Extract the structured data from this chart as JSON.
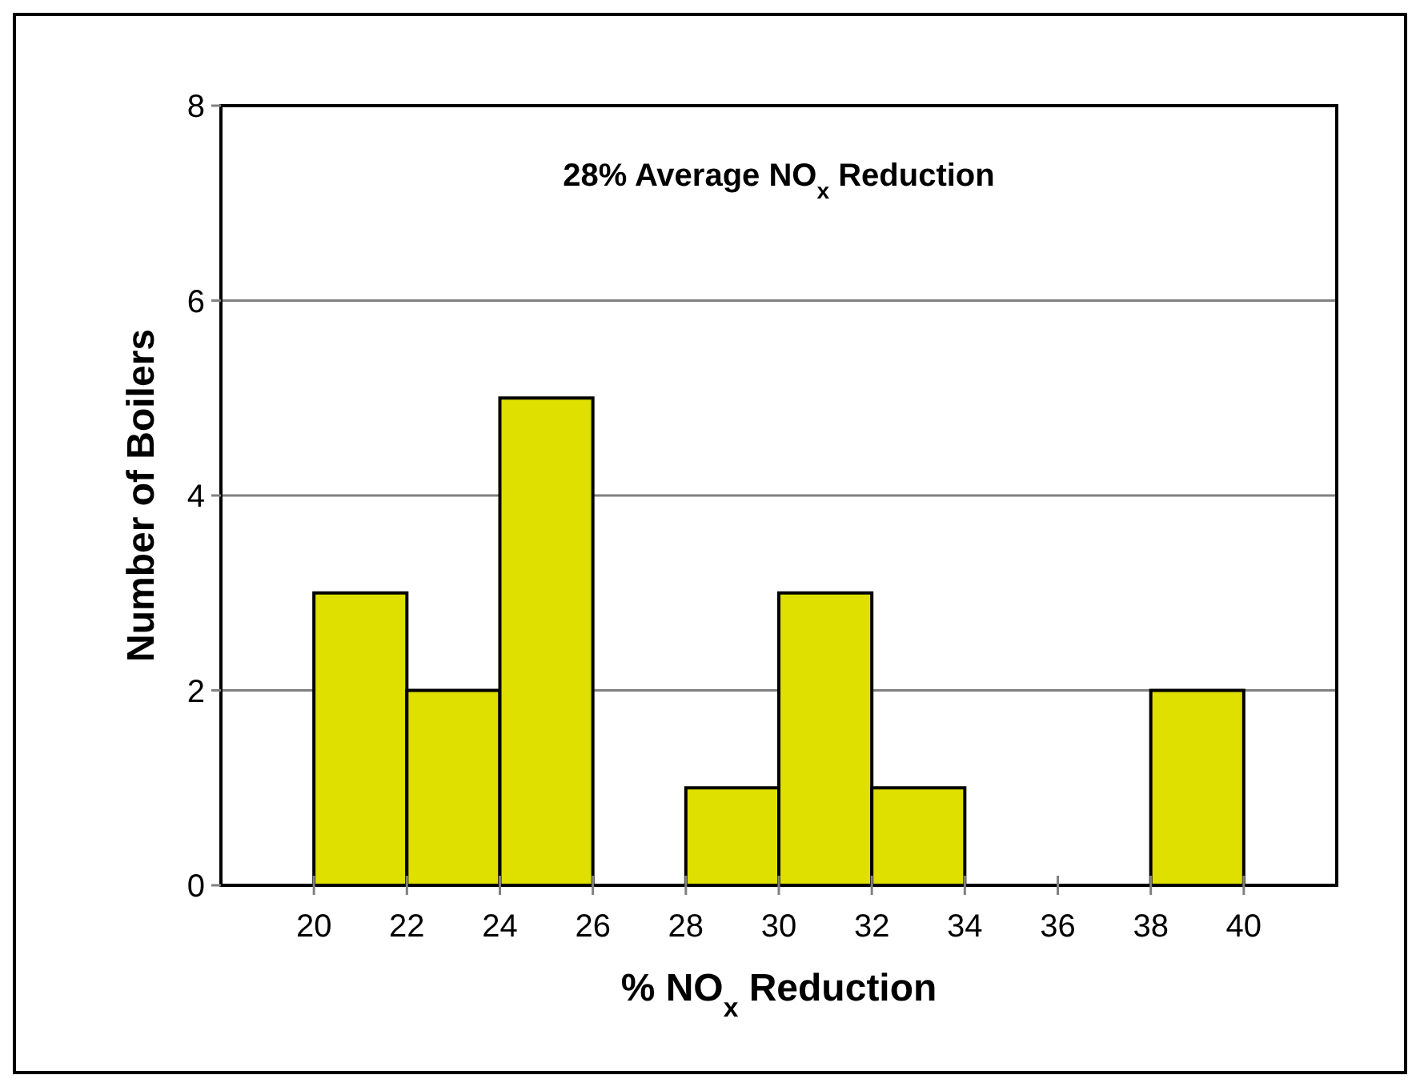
{
  "chart_data": {
    "type": "histogram",
    "xlabel": "% NO$_{x}$ Reduction",
    "ylabel": "Number of Boilers",
    "annotations": [
      "28% Average NO$_{x}$ Reduction"
    ],
    "bins": [
      20,
      22,
      24,
      26,
      28,
      30,
      32,
      34,
      36,
      38,
      40
    ],
    "values": [
      3,
      2,
      5,
      0,
      1,
      3,
      1,
      0,
      0,
      2
    ],
    "color": "#dfdf00",
    "xlim": [
      18,
      42
    ],
    "xticks": [
      20,
      22,
      24,
      26,
      28,
      30,
      32,
      34,
      36,
      38,
      40
    ],
    "ylim": [
      0,
      8
    ],
    "yticks": [
      0,
      2,
      4,
      6,
      8
    ],
    "grid": "y"
  }
}
